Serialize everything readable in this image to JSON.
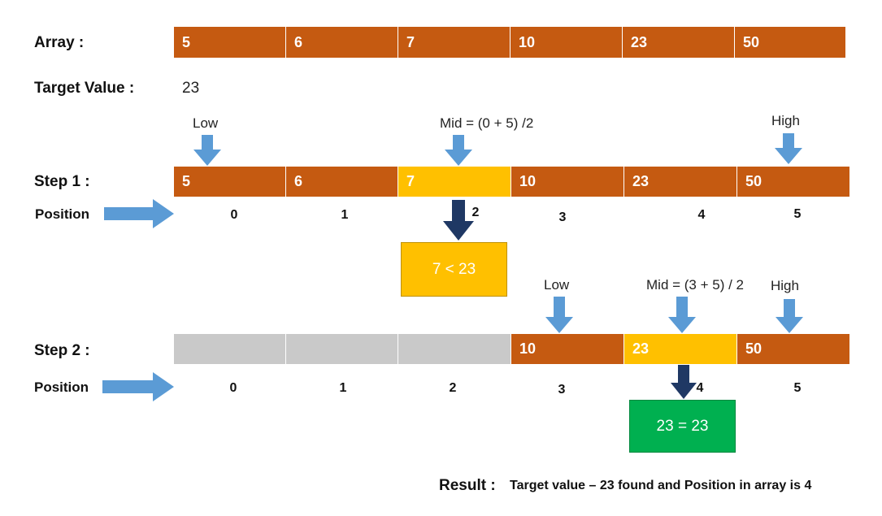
{
  "array": {
    "label": "Array :",
    "values": [
      "5",
      "6",
      "7",
      "10",
      "23",
      "50"
    ]
  },
  "target": {
    "label": "Target Value  :",
    "value": "23"
  },
  "step1": {
    "label": "Step 1  :",
    "position_label": "Position",
    "values": [
      "5",
      "6",
      "7",
      "10",
      "23",
      "50"
    ],
    "positions": [
      "0",
      "1",
      "2",
      "3",
      "4",
      "5"
    ],
    "low_label": "Low",
    "mid_label": "Mid = (0 + 5) /2",
    "high_label": "High",
    "compare_text": "7 < 23"
  },
  "step2": {
    "label": "Step 2  :",
    "position_label": "Position",
    "values": [
      "",
      "",
      "",
      "10",
      "23",
      "50"
    ],
    "positions": [
      "0",
      "1",
      "2",
      "3",
      "4",
      "5"
    ],
    "low_label": "Low",
    "mid_label": "Mid = (3 + 5) / 2",
    "high_label": "High",
    "compare_text": "23 = 23"
  },
  "result": {
    "label": "Result  :",
    "text": "Target value – 23 found and Position  in array is 4"
  },
  "colors": {
    "orange": "#c55a11",
    "yellow": "#ffc000",
    "gray": "#c9c9c9",
    "green": "#00b050",
    "light_blue_arrow": "#5b9bd5",
    "dark_blue_arrow": "#1f3864"
  }
}
